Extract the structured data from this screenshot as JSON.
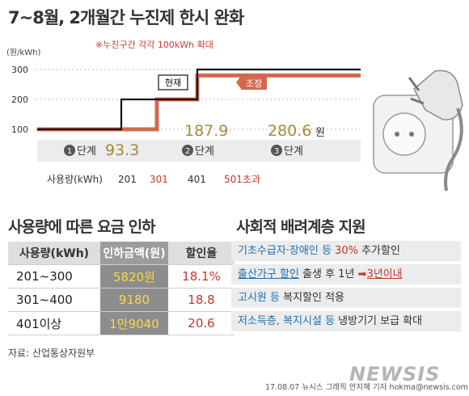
{
  "title": "7~8월, 2개월간 누진제 한시 완화",
  "note": "※누진구간 각각 100kWh 확대",
  "chart_data": {
    "type": "line",
    "ylabel": "(원/kWh)",
    "yticks": [
      "300",
      "200",
      "100"
    ],
    "xlabel": "사용량(kWh)",
    "xticks": [
      "201",
      "301",
      "401",
      "501초과"
    ],
    "series": [
      {
        "name": "현재",
        "color": "#111111",
        "points": [
          [
            0,
            100
          ],
          [
            201,
            100
          ],
          [
            201,
            200
          ],
          [
            401,
            200
          ],
          [
            401,
            300
          ],
          [
            500,
            300
          ]
        ]
      },
      {
        "name": "조정",
        "color": "#d2694f",
        "points": [
          [
            0,
            100
          ],
          [
            301,
            100
          ],
          [
            301,
            200
          ],
          [
            401,
            200
          ],
          [
            401,
            280
          ],
          [
            500,
            280
          ]
        ]
      }
    ],
    "tiers": [
      {
        "num": "1",
        "word": "단계",
        "price": "93.3"
      },
      {
        "num": "2",
        "word": "단계",
        "price": "187.9"
      },
      {
        "num": "3",
        "word": "단계",
        "price": "280.6",
        "unit": "원"
      }
    ]
  },
  "section1": {
    "title": "사용량에 따른 요금 인하",
    "headers": [
      "사용량(kWh)",
      "인하금액(원)",
      "할인율"
    ],
    "rows": [
      {
        "range": "201~300",
        "amount": "5820원",
        "rate": "18.1%"
      },
      {
        "range": "301~400",
        "amount": "9180",
        "rate": "18.8"
      },
      {
        "range": "401이상",
        "amount": "1만9040",
        "rate": "20.6"
      }
    ]
  },
  "section2": {
    "title": "사회적 배려계층 지원",
    "row1": {
      "a": "기초수급자·장애인 등 ",
      "b": "30%",
      "c": " 추가할인"
    },
    "row2": {
      "a": "출산가구 할인",
      "b": " 출생 후 1년 ",
      "arrow": "➡",
      "c": "3년이내"
    },
    "row3": {
      "a": "고시원 등",
      "b": " 복지할인 적용"
    },
    "row4": {
      "a": "저소득층, 복지시설 등",
      "b": " 냉방기기 보급 확대"
    }
  },
  "source": "자료: 산업통상자원부",
  "credit": "17.08.07 뉴시스 그래픽 안지혜 기자 hokma@newsis.com",
  "brand": "NEWSIS"
}
